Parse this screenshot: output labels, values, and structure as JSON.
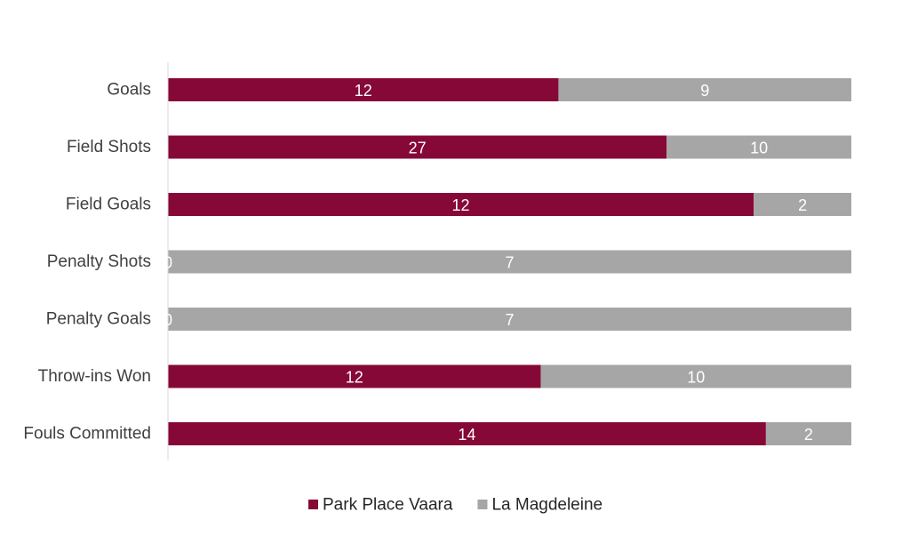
{
  "chart_data": {
    "type": "bar",
    "orientation": "horizontal",
    "stacked": "percent",
    "categories": [
      "Goals",
      "Field Shots",
      "Field Goals",
      "Penalty Shots",
      "Penalty Goals",
      "Throw-ins Won",
      "Fouls Committed"
    ],
    "series": [
      {
        "name": "Park Place Vaara",
        "color": "#860836",
        "values": [
          12,
          27,
          12,
          0,
          0,
          12,
          14
        ]
      },
      {
        "name": "La Magdeleine",
        "color": "#a6a6a6",
        "values": [
          9,
          10,
          2,
          7,
          7,
          10,
          2
        ]
      }
    ],
    "title": "",
    "xlabel": "",
    "ylabel": "",
    "grid": false,
    "legend_position": "bottom"
  }
}
